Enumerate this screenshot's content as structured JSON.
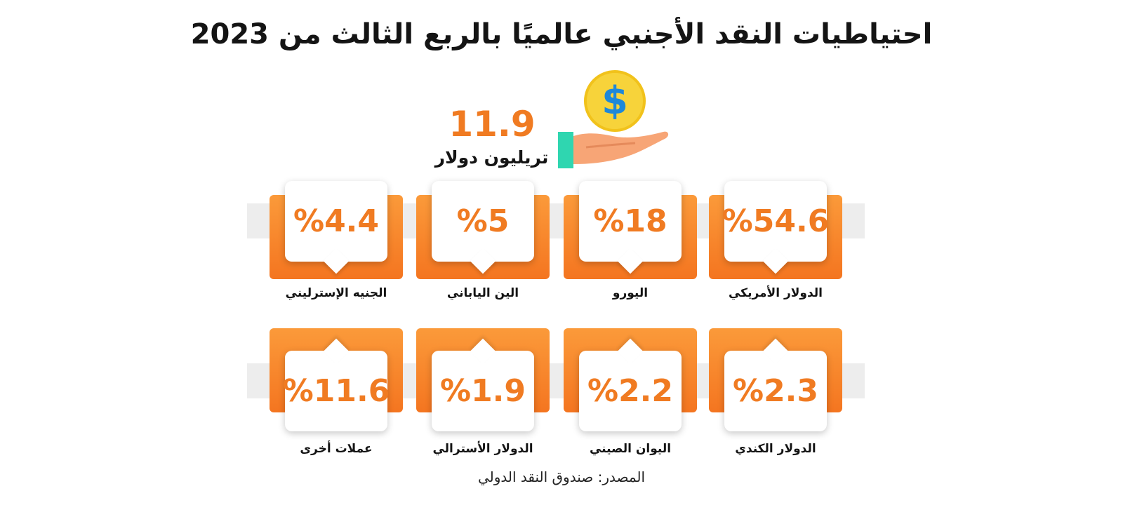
{
  "title": "احتياطيات النقد الأجنبي عالميًا بالربع الثالث من 2023",
  "total": {
    "value": "11.9",
    "unit": "تريليون دولار"
  },
  "icons": {
    "coin": "dollar-coin-icon",
    "hand": "hand-icon",
    "accent": "#f07b22"
  },
  "currencies_row1": [
    {
      "percent": "%54.6",
      "label": "الدولار الأمريكي"
    },
    {
      "percent": "%18",
      "label": "اليورو"
    },
    {
      "percent": "%5",
      "label": "الين الياباني"
    },
    {
      "percent": "%4.4",
      "label": "الجنيه الإسترليني"
    }
  ],
  "currencies_row2": [
    {
      "percent": "%2.3",
      "label": "الدولار الكندي"
    },
    {
      "percent": "%2.2",
      "label": "اليوان الصيني"
    },
    {
      "percent": "%1.9",
      "label": "الدولار الأسترالي"
    },
    {
      "percent": "%11.6",
      "label": "عملات أخرى"
    }
  ],
  "source": "المصدر: صندوق النقد الدولي"
}
